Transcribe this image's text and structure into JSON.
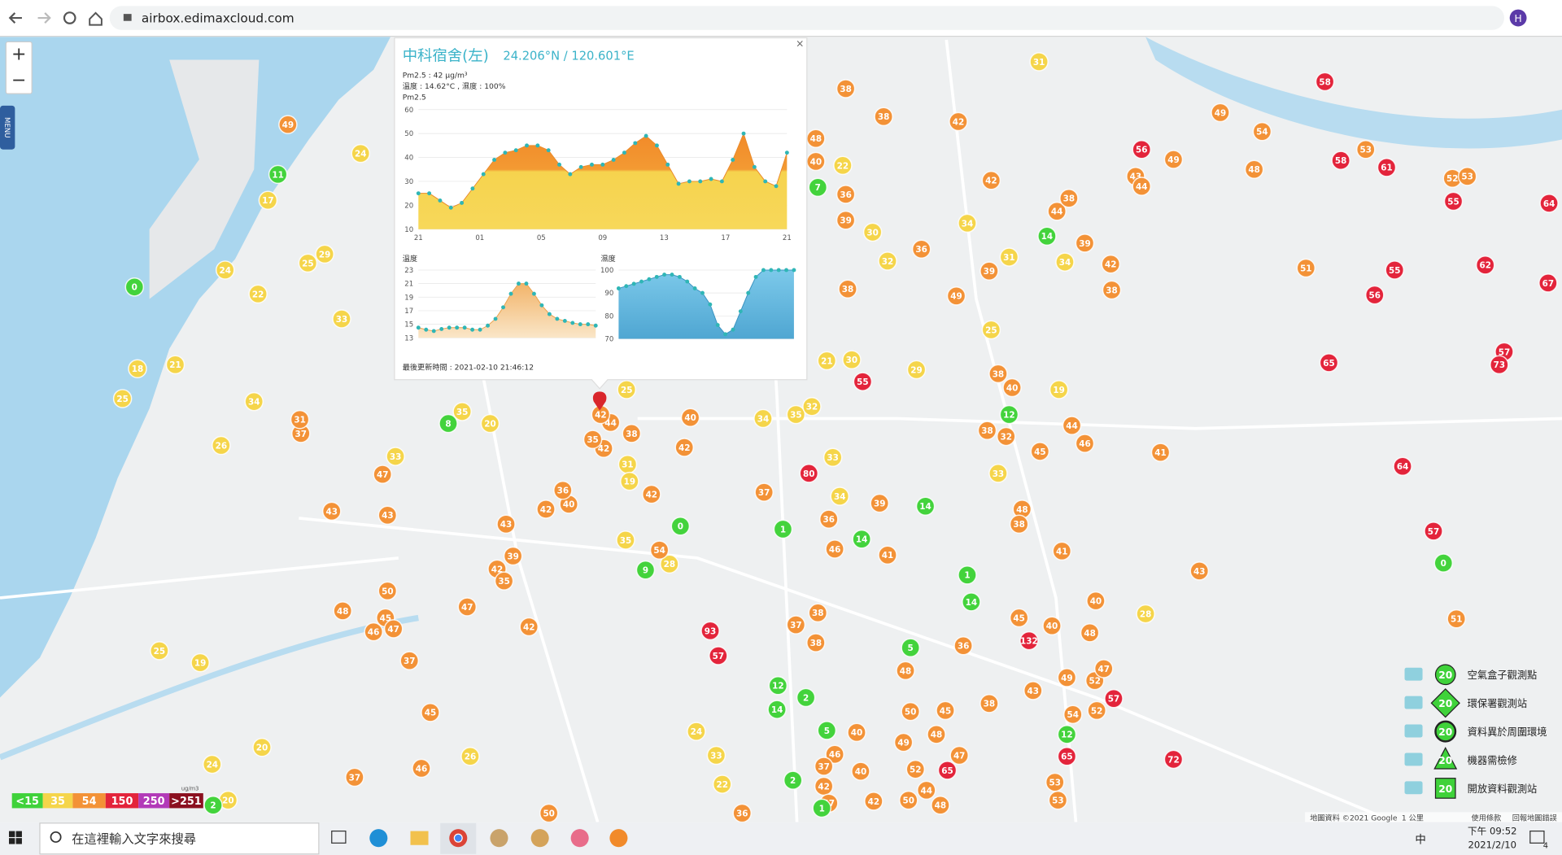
{
  "browser": {
    "url": "airbox.edimaxcloud.com"
  },
  "map": {
    "zoom_in": "+",
    "zoom_out": "−",
    "menu": "MENU",
    "markers": [
      {
        "color": "#f5d54a",
        "values": [
          31,
          24,
          17,
          24,
          22,
          25,
          29,
          33,
          18,
          21,
          25,
          34,
          26,
          33,
          22,
          30,
          32,
          34,
          25,
          19,
          33,
          29,
          30,
          21,
          20,
          35,
          25,
          34,
          35,
          32,
          31,
          19,
          35,
          28,
          33,
          34,
          24,
          33,
          22,
          24,
          20,
          25,
          19,
          26,
          20,
          28,
          34,
          31
        ]
      },
      {
        "color": "#f39237",
        "values": [
          49,
          38,
          38,
          48,
          40,
          36,
          39,
          42,
          42,
          44,
          38,
          39,
          42,
          38,
          39,
          49,
          38,
          36,
          49,
          54,
          48,
          43,
          44,
          49,
          53,
          51,
          52,
          53,
          37,
          31,
          47,
          43,
          43,
          42,
          40,
          36,
          42,
          43,
          39,
          42,
          35,
          47,
          42,
          48,
          50,
          45,
          47,
          46,
          37,
          45,
          46,
          37,
          40,
          42,
          38,
          44,
          42,
          42,
          35,
          37,
          54,
          38,
          40,
          44,
          46,
          45,
          41,
          38,
          32,
          43,
          51,
          52,
          47,
          48,
          49,
          43,
          54,
          52,
          53,
          53,
          50,
          36,
          46,
          39,
          36,
          38,
          37,
          38,
          41,
          48,
          50,
          49,
          52,
          45,
          48,
          47,
          36,
          38,
          48,
          38,
          41,
          40,
          40,
          45,
          40,
          46,
          40,
          37,
          42,
          47,
          42,
          50,
          44,
          48
        ]
      },
      {
        "color": "#e3243b",
        "values": [
          58,
          56,
          58,
          61,
          55,
          64,
          62,
          55,
          56,
          67,
          65,
          57,
          73,
          55,
          80,
          64,
          57,
          93,
          57,
          132,
          57,
          65,
          65,
          72
        ]
      },
      {
        "color": "#43d33c",
        "values": [
          11,
          0,
          8,
          0,
          1,
          9,
          14,
          12,
          14,
          14,
          1,
          14,
          0,
          12,
          2,
          14,
          5,
          12,
          2,
          1,
          5,
          2,
          7
        ]
      }
    ],
    "attribution": "地圖資料 ©2021 Google",
    "scale": "1 公里",
    "terms": "使用條款",
    "report": "回報地圖錯誤"
  },
  "popup": {
    "close": "×",
    "title": "中科宿舍(左)",
    "coords": "24.206°N / 120.601°E",
    "pm25_line": "Pm2.5 : 42 μg/m³",
    "weather_line": "溫度 : 14.62°C , 濕度 : 100%",
    "chart_label": "Pm2.5",
    "pm25_chart": {
      "type": "area",
      "ylim": [
        10,
        60
      ],
      "yticks": [
        10,
        20,
        30,
        40,
        50,
        60
      ],
      "xticks": [
        "21",
        "01",
        "05",
        "09",
        "13",
        "17",
        "21"
      ],
      "values": [
        25,
        25,
        22,
        19,
        21,
        27,
        33,
        39,
        42,
        43,
        45,
        45,
        43,
        37,
        33,
        36,
        37,
        37,
        39,
        42,
        46,
        49,
        45,
        37,
        29,
        30,
        30,
        31,
        30,
        39,
        50,
        36,
        30,
        28,
        42
      ]
    },
    "temp_chart": {
      "type": "area",
      "title": "溫度",
      "ylim": [
        13,
        23
      ],
      "yticks": [
        13,
        15,
        17,
        19,
        21,
        23
      ],
      "values": [
        14.5,
        14.2,
        14,
        14.3,
        14.5,
        14.5,
        14.5,
        14.2,
        14.2,
        14.8,
        15.8,
        17.5,
        19.5,
        21,
        21,
        19.5,
        17.8,
        16.5,
        15.8,
        15.5,
        15.2,
        15,
        15,
        14.8
      ]
    },
    "humidity_chart": {
      "type": "area",
      "title": "濕度",
      "ylim": [
        70,
        100
      ],
      "yticks": [
        70,
        80,
        90,
        100
      ],
      "values": [
        92,
        93,
        94,
        95,
        96,
        97,
        98,
        98,
        97,
        95,
        92,
        90,
        85,
        76,
        72,
        74,
        82,
        90,
        97,
        100,
        100,
        100,
        100,
        100
      ]
    },
    "updated": "最後更新時間 : 2021-02-10 21:46:12"
  },
  "aqi_legend": {
    "unit": "ug/m3",
    "items": [
      {
        "label": "<15",
        "color": "#3fd23a"
      },
      {
        "label": "35",
        "color": "#f5d54a"
      },
      {
        "label": "54",
        "color": "#f39237"
      },
      {
        "label": "150",
        "color": "#e3243b"
      },
      {
        "label": "250",
        "color": "#b23ab8"
      },
      {
        "label": ">251",
        "color": "#8b1020"
      }
    ]
  },
  "station_legend": {
    "icon_value": "20",
    "items": [
      "空氣盒子觀測點",
      "環保署觀測站",
      "資料異於周圍環境",
      "機器需檢修",
      "開放資料觀測站"
    ]
  },
  "taskbar": {
    "search": "在這裡輸入文字來搜尋",
    "ime": "中",
    "time": "下午 09:52",
    "date": "2021/2/10",
    "notifications": "4"
  }
}
